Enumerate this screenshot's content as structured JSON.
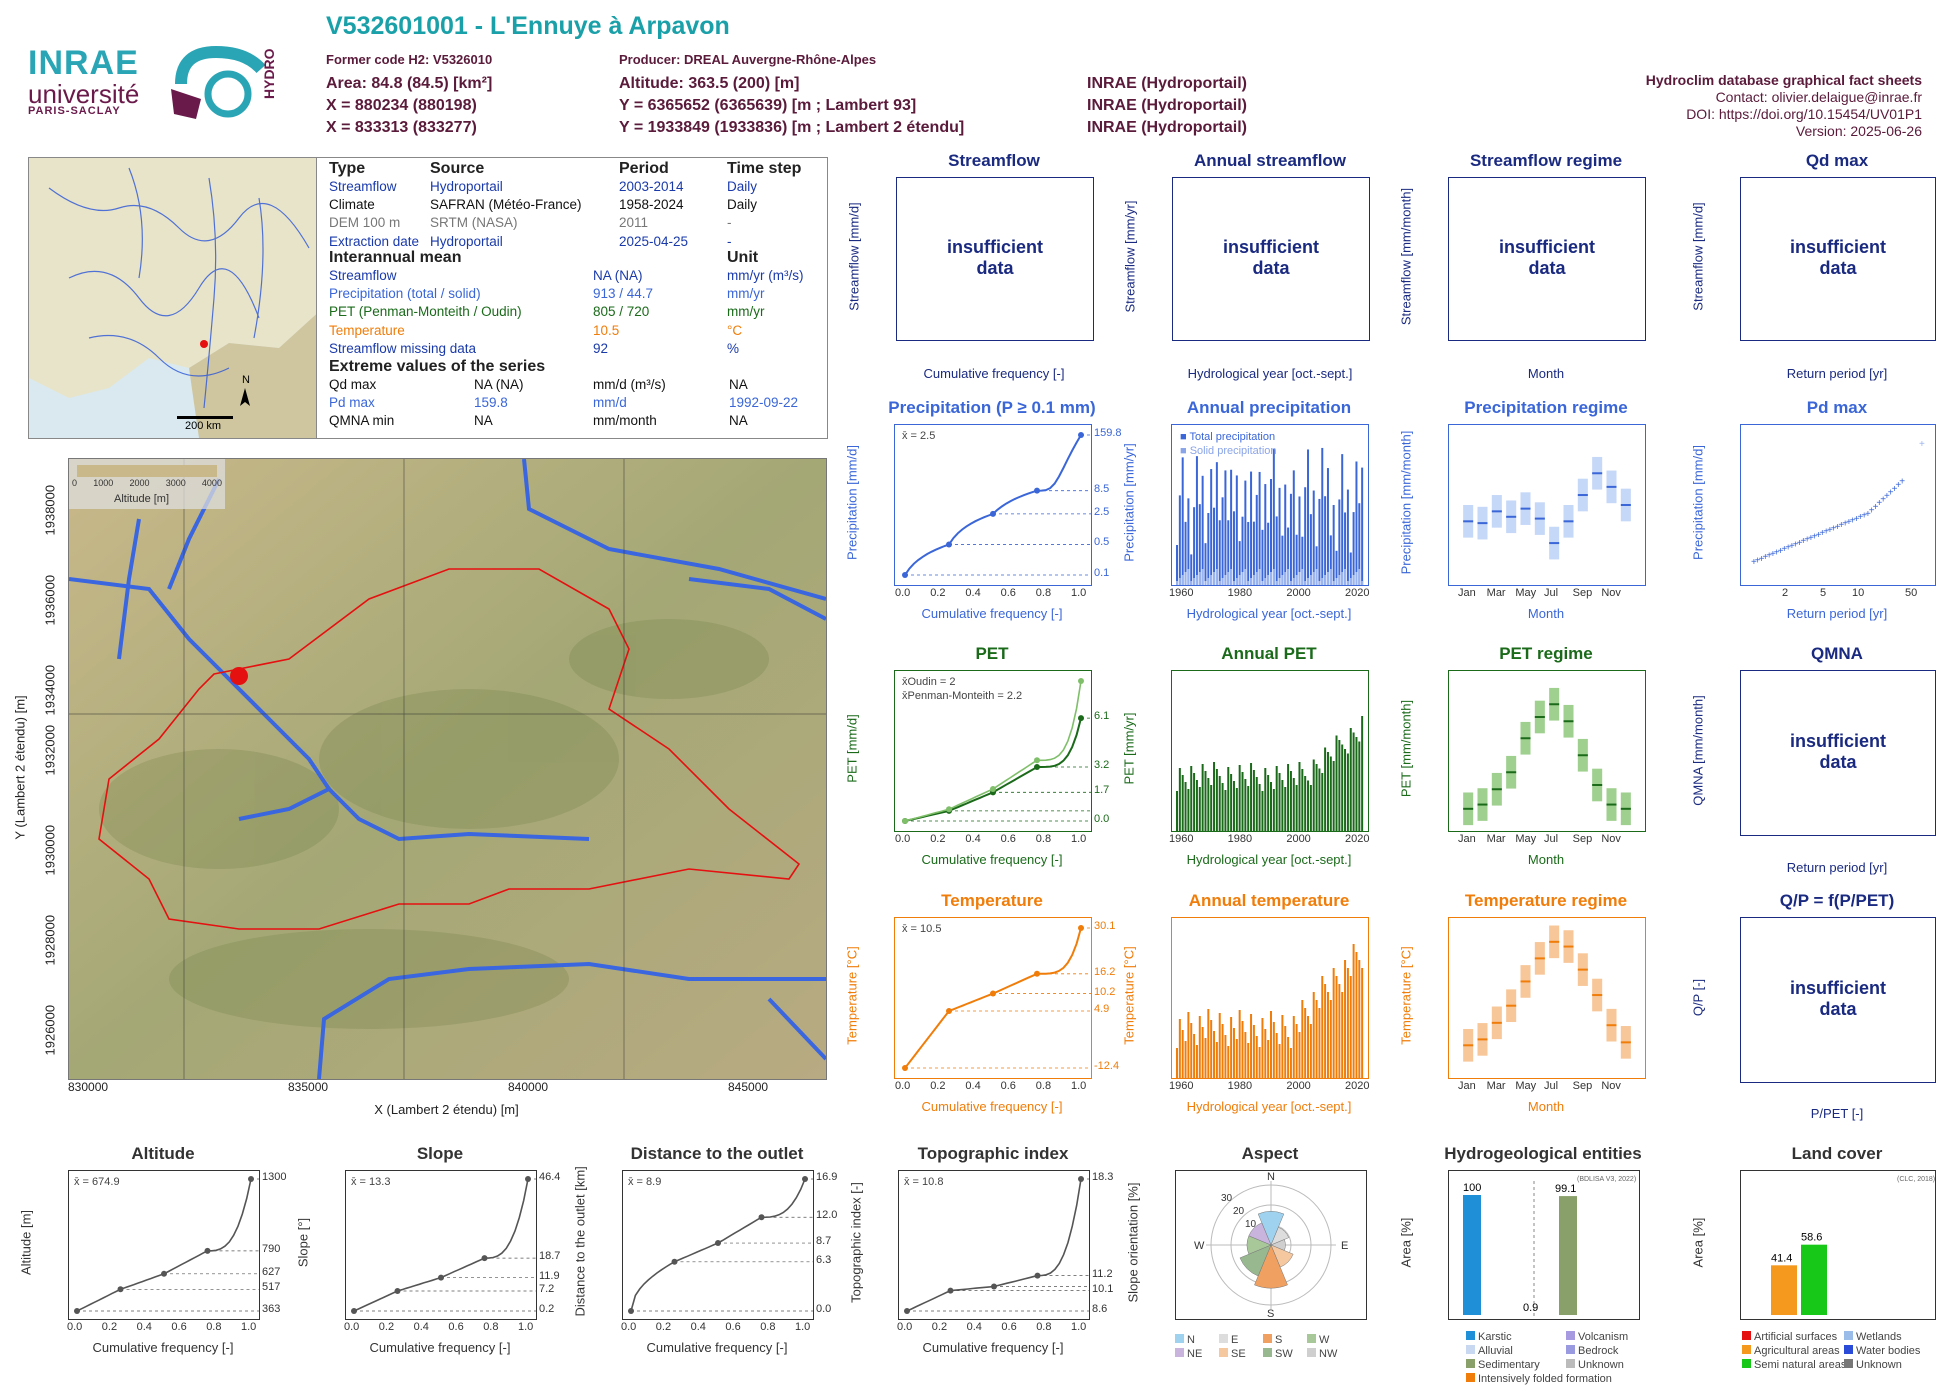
{
  "header": {
    "title": "V532601001 - L'Ennuye à Arpavon",
    "former_code": "Former code H2: V5326010",
    "producer": "Producer: DREAL Auvergne-Rhône-Alpes",
    "area": "Area: 84.8 (84.5) [km²]",
    "x": "X = 880234 (880198)",
    "x2": "X = 833313 (833277)",
    "altitude": "Altitude: 363.5 (200) [m]",
    "y": "Y = 6365652 (6365639) [m ; Lambert 93]",
    "y2": "Y = 1933849 (1933836) [m ; Lambert 2 étendu]",
    "inrae1": "INRAE (Hydroportail)",
    "inrae2": "INRAE (Hydroportail)",
    "inrae3": "INRAE (Hydroportail)",
    "db": "Hydroclim database graphical fact sheets",
    "contact": "Contact: olivier.delaigue@inrae.fr",
    "doi": "DOI: https://doi.org/10.15454/UV01P1",
    "version": "Version: 2025-06-26",
    "logo1": "INRAE",
    "logo2": "université",
    "logo3": "PARIS-SACLAY",
    "logo4": "HYDRO"
  },
  "minimap": {
    "scale": "200 km",
    "north": "N"
  },
  "table": {
    "h_type": "Type",
    "h_source": "Source",
    "h_period": "Period",
    "h_timestep": "Time step",
    "rows": [
      {
        "type": "Streamflow",
        "source": "Hydroportail",
        "period": "2003-2014",
        "step": "Daily"
      },
      {
        "type": "Climate",
        "source": "SAFRAN (Météo-France)",
        "period": "1958-2024",
        "step": "Daily"
      },
      {
        "type": "DEM 100 m",
        "source": "SRTM (NASA)",
        "period": "2011",
        "step": "-"
      },
      {
        "type": "Extraction date",
        "source": "Hydroportail",
        "period": "2025-04-25",
        "step": "-"
      }
    ],
    "h_mean": "Interannual mean",
    "h_unit": "Unit",
    "means": [
      {
        "label": "Streamflow",
        "value": "NA (NA)",
        "unit": "mm/yr (m³/s)"
      },
      {
        "label": "Precipitation (total / solid)",
        "value": "913 / 44.7",
        "unit": "mm/yr"
      },
      {
        "label": "PET (Penman-Monteith / Oudin)",
        "value": "805 / 720",
        "unit": "mm/yr"
      },
      {
        "label": "Temperature",
        "value": "10.5",
        "unit": "°C"
      },
      {
        "label": "Streamflow missing data",
        "value": "92",
        "unit": "%"
      }
    ],
    "h_extreme": "Extreme values of the series",
    "extremes": [
      {
        "label": "Qd max",
        "v1": "NA (NA)",
        "v2": "mm/d (m³/s)",
        "v3": "NA"
      },
      {
        "label": "Pd max",
        "v1": "159.8",
        "v2": "mm/d",
        "v3": "1992-09-22"
      },
      {
        "label": "QMNA min",
        "v1": "NA",
        "v2": "mm/month",
        "v3": "NA"
      }
    ]
  },
  "map": {
    "xlabel": "X (Lambert 2 étendu) [m]",
    "ylabel": "Y (Lambert 2 étendu) [m]",
    "xticks": [
      "830000",
      "835000",
      "840000",
      "845000"
    ],
    "yticks": [
      "1926000",
      "1928000",
      "1930000",
      "1932000",
      "1934000",
      "1936000",
      "1938000"
    ],
    "legend_title": "Altitude [m]",
    "legend_ticks": [
      "0",
      "1000",
      "2000",
      "3000",
      "4000"
    ]
  },
  "insufficient": "insufficient data",
  "panels": {
    "streamflow": {
      "title": "Streamflow",
      "ylabel": "Streamflow [mm/d]",
      "xlabel": "Cumulative frequency [-]"
    },
    "annual_streamflow": {
      "title": "Annual streamflow",
      "ylabel": "Streamflow [mm/yr]",
      "xlabel": "Hydrological year [oct.-sept.]"
    },
    "streamflow_regime": {
      "title": "Streamflow regime",
      "ylabel": "Streamflow [mm/month]",
      "xlabel": "Month"
    },
    "qd_max": {
      "title": "Qd max",
      "ylabel": "Streamflow [mm/d]",
      "xlabel": "Return period [yr]"
    },
    "precip": {
      "title": "Precipitation (P ≥ 0.1 mm)",
      "ylabel": "Precipitation [mm/d]",
      "xlabel": "Cumulative frequency [-]",
      "mean": "x̄ = 2.5"
    },
    "annual_precip": {
      "title": "Annual precipitation",
      "ylabel": "Precipitation [mm/yr]",
      "xlabel": "Hydrological year [oct.-sept.]",
      "leg1": "Total precipitation",
      "leg2": "Solid precipitation"
    },
    "precip_regime": {
      "title": "Precipitation regime",
      "ylabel": "Precipitation [mm/month]",
      "xlabel": "Month"
    },
    "pd_max": {
      "title": "Pd max",
      "ylabel": "Precipitation [mm/d]",
      "xlabel": "Return period [yr]"
    },
    "pet": {
      "title": "PET",
      "ylabel": "PET [mm/d]",
      "xlabel": "Cumulative frequency [-]",
      "mean1": "x̄Oudin = 2",
      "mean2": "x̄Penman-Monteith = 2.2"
    },
    "annual_pet": {
      "title": "Annual PET",
      "ylabel": "PET [mm/yr]",
      "xlabel": "Hydrological year [oct.-sept.]"
    },
    "pet_regime": {
      "title": "PET regime",
      "ylabel": "PET [mm/month]",
      "xlabel": "Month"
    },
    "qmna": {
      "title": "QMNA",
      "ylabel": "QMNA [mm/month]",
      "xlabel": "Return period [yr]"
    },
    "temp": {
      "title": "Temperature",
      "ylabel": "Temperature [°C]",
      "xlabel": "Cumulative frequency [-]",
      "mean": "x̄ = 10.5"
    },
    "annual_temp": {
      "title": "Annual temperature",
      "ylabel": "Temperature [°C]",
      "xlabel": "Hydrological year [oct.-sept.]"
    },
    "temp_regime": {
      "title": "Temperature regime",
      "ylabel": "Temperature [°C]",
      "xlabel": "Month"
    },
    "qp": {
      "title": "Q/P = f(P/PET)",
      "ylabel": "Q/P [-]",
      "xlabel": "P/PET [-]"
    },
    "altitude": {
      "title": "Altitude",
      "ylabel": "Altitude [m]",
      "xlabel": "Cumulative frequency [-]",
      "mean": "x̄ = 674.9"
    },
    "slope": {
      "title": "Slope",
      "ylabel": "Slope [°]",
      "xlabel": "Cumulative frequency [-]",
      "mean": "x̄ = 13.3"
    },
    "distance": {
      "title": "Distance to the outlet",
      "ylabel": "Distance to the outlet [km]",
      "xlabel": "Cumulative frequency [-]",
      "mean": "x̄ = 8.9"
    },
    "topo": {
      "title": "Topographic index",
      "ylabel": "Topographic index [-]",
      "xlabel": "Cumulative frequency [-]",
      "mean": "x̄ = 10.8"
    },
    "aspect": {
      "title": "Aspect",
      "ylabel": "Slope orientation [%]"
    },
    "hydrogeo": {
      "title": "Hydrogeological entities",
      "ylabel": "Area [%]",
      "note": "(BDLISA V3, 2022)"
    },
    "landcover": {
      "title": "Land cover",
      "ylabel": "Area [%]",
      "note": "(CLC, 2018)"
    }
  },
  "chart_data": [
    {
      "id": "precip",
      "type": "line",
      "ylog": true,
      "x": [
        0,
        0.25,
        0.5,
        0.75,
        1.0
      ],
      "y": [
        0.1,
        0.5,
        2.5,
        8.5,
        159.8
      ],
      "right_ticks": [
        "159.8",
        "8.5",
        "2.5",
        "0.5",
        "0.1"
      ],
      "xticks": [
        "0.0",
        "0.2",
        "0.4",
        "0.6",
        "0.8",
        "1.0"
      ],
      "yticks": [
        "0.1",
        "1",
        "5",
        "20",
        "50"
      ]
    },
    {
      "id": "pet",
      "type": "line",
      "x": [
        0,
        0.25,
        0.5,
        0.75,
        1.0
      ],
      "series": [
        {
          "name": "Oudin",
          "y": [
            0.0,
            0.6,
            1.7,
            3.2,
            6.1
          ]
        },
        {
          "name": "Penman-Monteith",
          "y": [
            0.0,
            0.7,
            1.9,
            3.6,
            8.3
          ]
        }
      ],
      "right_ticks": [
        "6.1",
        "3.2",
        "1.7",
        "0.0"
      ],
      "ylim": [
        0,
        8
      ]
    },
    {
      "id": "temp",
      "type": "line",
      "x": [
        0,
        0.25,
        0.5,
        0.75,
        1.0
      ],
      "y": [
        -12.4,
        4.9,
        10.2,
        16.2,
        30.1
      ],
      "right_ticks": [
        "30.1",
        "16.2",
        "10.2",
        "4.9",
        "-12.4"
      ],
      "ylim": [
        -12,
        30
      ]
    },
    {
      "id": "annual_precip",
      "type": "bar",
      "years": [
        1959,
        2024
      ],
      "ylim": [
        400,
        1500
      ],
      "xticks": [
        "1960",
        "1980",
        "2000",
        "2020"
      ],
      "yticks": [
        "500",
        "700",
        "900",
        "1100",
        "1300",
        "1500"
      ]
    },
    {
      "id": "annual_pet",
      "type": "bar",
      "years": [
        1959,
        2024
      ],
      "ylim": [
        600,
        1100
      ],
      "xticks": [
        "1960",
        "1980",
        "2000",
        "2020"
      ],
      "yticks": [
        "600",
        "700",
        "800",
        "900",
        "1000",
        "1100"
      ]
    },
    {
      "id": "annual_temp",
      "type": "bar",
      "years": [
        1959,
        2024
      ],
      "ylim": [
        8.5,
        12.5
      ],
      "xticks": [
        "1960",
        "1980",
        "2000",
        "2020"
      ],
      "yticks": [
        "9",
        "10",
        "11",
        "12"
      ]
    },
    {
      "id": "precip_regime",
      "type": "boxplot",
      "months": [
        "Jan",
        "Feb",
        "Mar",
        "Apr",
        "May",
        "Jun",
        "Jul",
        "Aug",
        "Sep",
        "Oct",
        "Nov",
        "Dec"
      ],
      "median": [
        57,
        55,
        68,
        62,
        71,
        60,
        33,
        57,
        86,
        110,
        95,
        75
      ],
      "ylim": [
        0,
        150
      ]
    },
    {
      "id": "pet_regime",
      "type": "boxplot",
      "months": [
        "Jan",
        "Feb",
        "Mar",
        "Apr",
        "May",
        "Jun",
        "Jul",
        "Aug",
        "Sep",
        "Oct",
        "Nov",
        "Dec"
      ],
      "median": [
        12,
        17,
        35,
        55,
        95,
        120,
        135,
        115,
        75,
        40,
        17,
        12
      ],
      "ylim": [
        0,
        160
      ]
    },
    {
      "id": "temp_regime",
      "type": "boxplot",
      "months": [
        "Jan",
        "Feb",
        "Mar",
        "Apr",
        "May",
        "Jun",
        "Jul",
        "Aug",
        "Sep",
        "Oct",
        "Nov",
        "Dec"
      ],
      "median": [
        2.5,
        3.5,
        6.3,
        9.2,
        13.3,
        17.2,
        20.0,
        19.2,
        15.3,
        11.0,
        5.9,
        3.0
      ],
      "ylim": [
        -1,
        22
      ]
    },
    {
      "id": "altitude",
      "type": "line",
      "x": [
        0,
        0.25,
        0.5,
        0.75,
        1.0
      ],
      "y": [
        363,
        517,
        627,
        790,
        1300
      ],
      "right_ticks": [
        "1300",
        "790",
        "627",
        "517",
        "363"
      ]
    },
    {
      "id": "slope",
      "type": "line",
      "x": [
        0,
        0.25,
        0.5,
        0.75,
        1.0
      ],
      "y": [
        0.2,
        7.2,
        11.9,
        18.7,
        46.4
      ],
      "right_ticks": [
        "46.4",
        "18.7",
        "11.9",
        "7.2",
        "0.2"
      ]
    },
    {
      "id": "distance",
      "type": "line",
      "x": [
        0,
        0.25,
        0.5,
        0.75,
        1.0
      ],
      "y": [
        0.0,
        6.3,
        8.7,
        12.0,
        16.9
      ],
      "right_ticks": [
        "16.9",
        "12.0",
        "8.7",
        "6.3",
        "0.0"
      ]
    },
    {
      "id": "topo",
      "type": "line",
      "x": [
        0,
        0.25,
        0.5,
        0.75,
        1.0
      ],
      "y": [
        8.6,
        10.1,
        10.4,
        11.2,
        18.3
      ],
      "right_ticks": [
        "18.3",
        "11.2",
        "10.1",
        "8.6"
      ]
    },
    {
      "id": "hydrogeo",
      "type": "bar",
      "categories": [
        "Karstic",
        "Sedimentary",
        "Intensively folded formation"
      ],
      "values": [
        100,
        0.9,
        99.1
      ],
      "labels": [
        "100",
        "0.9",
        "99.1"
      ],
      "legend": [
        "Karstic",
        "Volcanism",
        "Alluvial",
        "Bedrock",
        "Sedimentary",
        "Unknown",
        "Intensively folded formation"
      ]
    },
    {
      "id": "landcover",
      "type": "bar",
      "categories": [
        "Agricultural areas",
        "Semi natural areas"
      ],
      "values": [
        41.4,
        58.6
      ],
      "labels": [
        "41.4",
        "58.6"
      ],
      "legend": [
        "Artificial surfaces",
        "Wetlands",
        "Agricultural areas",
        "Water bodies",
        "Semi natural areas",
        "Unknown"
      ]
    },
    {
      "id": "aspect",
      "type": "polar",
      "directions": [
        "N",
        "NE",
        "E",
        "SE",
        "S",
        "SW",
        "W",
        "NW"
      ],
      "values": [
        14,
        8,
        6,
        10,
        18,
        14,
        10,
        10
      ],
      "rings": [
        "10",
        "20",
        "30"
      ],
      "legend": [
        "N",
        "E",
        "S",
        "W",
        "NE",
        "SE",
        "SW",
        "NW"
      ]
    }
  ],
  "colors": {
    "blue": "#3a66d8",
    "green": "#1a6a1a",
    "orange": "#f07d0a",
    "navy": "#1a2a80",
    "red": "#e51010"
  }
}
